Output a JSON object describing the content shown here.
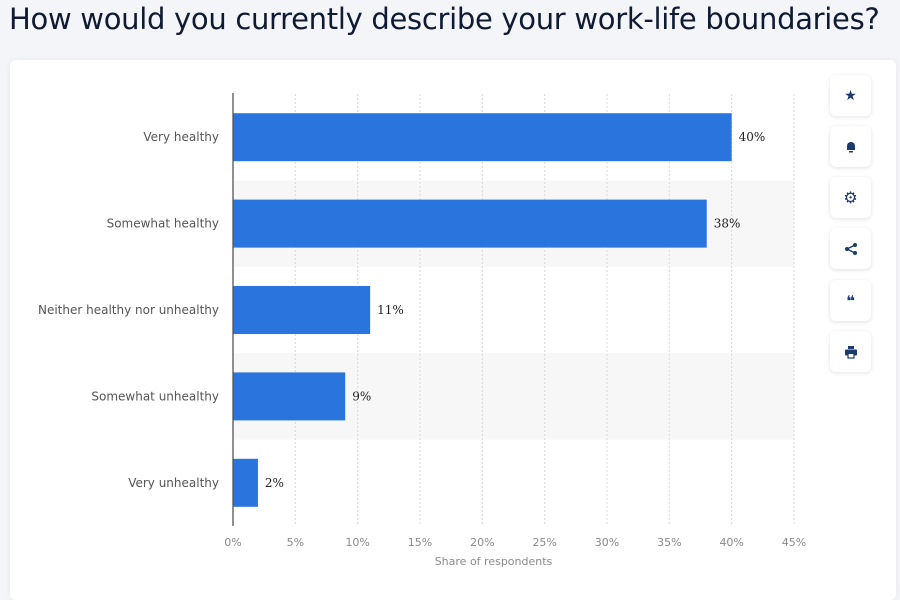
{
  "chart_data": {
    "type": "bar",
    "orientation": "horizontal",
    "title": "How would you currently describe your work-life boundaries?",
    "categories": [
      "Very healthy",
      "Somewhat healthy",
      "Neither healthy nor unhealthy",
      "Somewhat unhealthy",
      "Very unhealthy"
    ],
    "values": [
      40,
      38,
      11,
      9,
      2
    ],
    "data_labels": [
      "40%",
      "38%",
      "11%",
      "9%",
      "2%"
    ],
    "xlabel": "Share of respondents",
    "ylabel": "",
    "xlim": [
      0,
      45
    ],
    "xticks": [
      "0%",
      "5%",
      "10%",
      "15%",
      "20%",
      "25%",
      "30%",
      "35%",
      "40%",
      "45%"
    ],
    "grid": true,
    "bar_color": "#2a75dd"
  },
  "toolbar": {
    "icons": [
      "star-icon",
      "bell-icon",
      "gear-icon",
      "share-icon",
      "quote-icon",
      "print-icon"
    ]
  }
}
